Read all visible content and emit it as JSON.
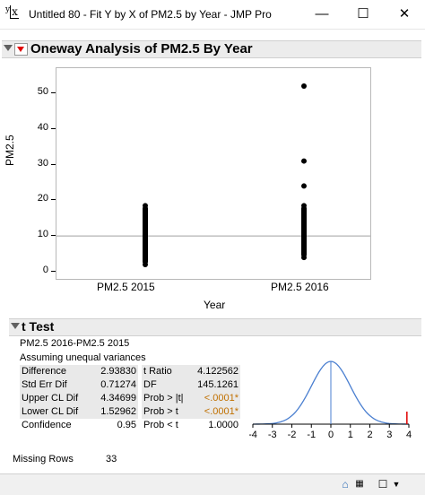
{
  "window": {
    "icon_text": "x",
    "title": "Untitled 80 - Fit Y by X of PM2.5 by Year - JMP Pro",
    "minimize": "—",
    "maximize": "☐",
    "close": "✕"
  },
  "report": {
    "title": "Oneway Analysis of PM2.5 By Year"
  },
  "chart_data": {
    "type": "scatter",
    "xlabel": "Year",
    "ylabel": "PM2.5",
    "categories": [
      "PM2.5 2015",
      "PM2.5 2016"
    ],
    "ylim": [
      0,
      55
    ],
    "yticks": [
      0,
      10,
      20,
      30,
      40,
      50
    ],
    "reference_line": 10,
    "series": [
      {
        "category": "PM2.5 2015",
        "values": [
          2,
          3,
          4,
          5,
          6,
          7,
          8,
          9,
          10,
          11,
          12,
          13,
          14,
          15,
          16,
          17,
          18.5
        ]
      },
      {
        "category": "PM2.5 2016",
        "values": [
          4,
          5,
          6,
          7,
          8,
          9,
          10,
          11,
          12,
          13,
          14,
          15,
          16,
          17,
          18.5,
          24,
          31,
          52
        ]
      }
    ],
    "grid": false
  },
  "ttest": {
    "title": "t Test",
    "comparison": "PM2.5 2016-PM2.5 2015",
    "assumption": "Assuming unequal variances",
    "rows": [
      {
        "label": "Difference",
        "value": "2.93830",
        "label2": "t Ratio",
        "value2": "4.122562"
      },
      {
        "label": "Std Err Dif",
        "value": "0.71274",
        "label2": "DF",
        "value2": "145.1261"
      },
      {
        "label": "Upper CL Dif",
        "value": "4.34699",
        "label2": "Prob > |t|",
        "value2": "<.0001*"
      },
      {
        "label": "Lower CL Dif",
        "value": "1.52962",
        "label2": "Prob > t",
        "value2": "<.0001*"
      },
      {
        "label": "Confidence",
        "value": "0.95",
        "label2": "Prob < t",
        "value2": "1.0000"
      }
    ],
    "dist_ticks": [
      "-4",
      "-3",
      "-2",
      "-1",
      "0",
      "1",
      "2",
      "3",
      "4"
    ],
    "t_ratio": 4.122562
  },
  "missing": {
    "label": "Missing Rows",
    "value": "33"
  },
  "statusbar": {
    "home_icon": "⌂",
    "checkbox": "☐",
    "dropdown": "▼"
  }
}
